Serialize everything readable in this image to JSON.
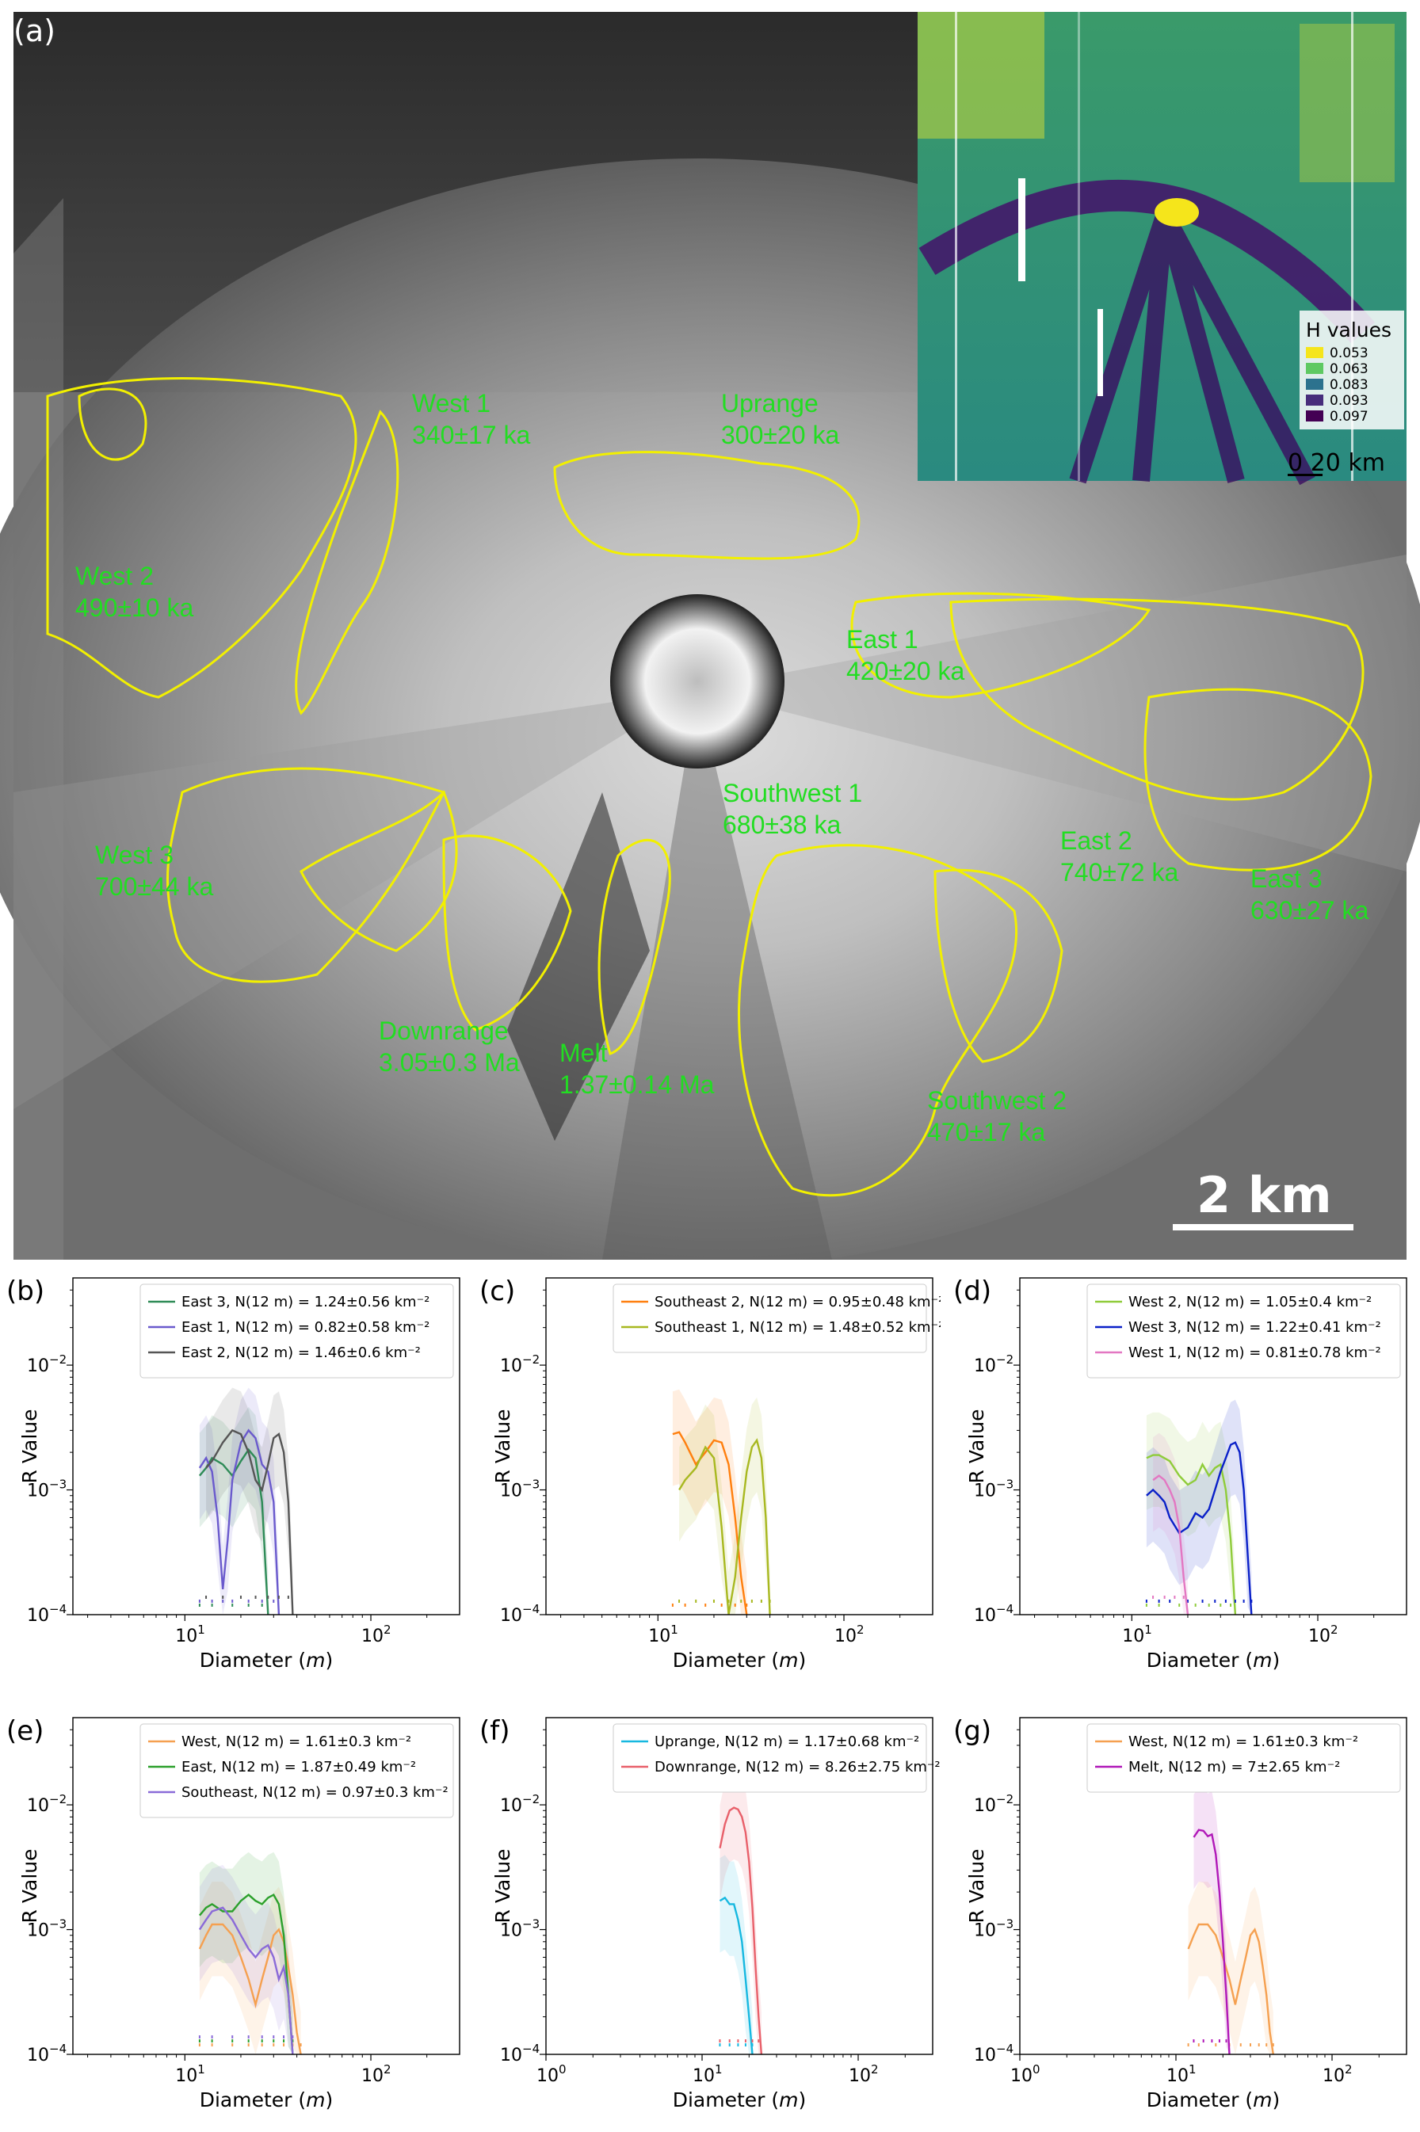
{
  "map": {
    "panel_label": "(a)",
    "scale_bar": "2 km",
    "inset": {
      "legend_title": "H values",
      "legend": [
        {
          "label": "0.053",
          "color": "#f5e51b"
        },
        {
          "label": "0.063",
          "color": "#5ec962"
        },
        {
          "label": "0.083",
          "color": "#2c728e"
        },
        {
          "label": "0.093",
          "color": "#472d7b"
        },
        {
          "label": "0.097",
          "color": "#440154"
        }
      ],
      "scale": "0  20 km"
    },
    "regions": [
      {
        "name": "West 1",
        "age": "340±17 ka"
      },
      {
        "name": "Uprange",
        "age": "300±20 ka"
      },
      {
        "name": "West 2",
        "age": "490±10 ka"
      },
      {
        "name": "East 1",
        "age": "420±20 ka"
      },
      {
        "name": "Southwest 1",
        "age": "680±38 ka"
      },
      {
        "name": "West 3",
        "age": "700±44 ka"
      },
      {
        "name": "East 2",
        "age": "740±72 ka"
      },
      {
        "name": "East 3",
        "age": "630±27 ka"
      },
      {
        "name": "Downrange",
        "age": "3.05±0.3 Ma"
      },
      {
        "name": "Melt",
        "age": "1.37±0.14 Ma"
      },
      {
        "name": "Southwest 2",
        "age": "470±17 ka"
      }
    ]
  },
  "chart_data": [
    {
      "panel": "(b)",
      "type": "line",
      "xlabel": "Diameter (m)",
      "ylabel": "R Value",
      "xscale": "log",
      "yscale": "log",
      "xlim": [
        2.5,
        300
      ],
      "ylim": [
        0.0001,
        0.05
      ],
      "series": [
        {
          "name": "East 3, N(12 m) = 1.24±0.56 km⁻²",
          "color": "#2e8b57",
          "x": [
            12,
            13,
            14,
            16,
            18,
            20,
            22,
            24,
            26,
            28
          ],
          "y": [
            0.0013,
            0.0015,
            0.0018,
            0.0016,
            0.0013,
            0.0017,
            0.0021,
            0.0018,
            0.0008,
            0.0001
          ]
        },
        {
          "name": "East 1, N(12 m) = 0.82±0.58 km⁻²",
          "color": "#6a5acd",
          "x": [
            12,
            13,
            14,
            15,
            16,
            17,
            18,
            20,
            22,
            24,
            26,
            28,
            30,
            32
          ],
          "y": [
            0.0015,
            0.0018,
            0.0014,
            0.0006,
            0.00016,
            0.0004,
            0.0012,
            0.0024,
            0.003,
            0.0026,
            0.0016,
            0.0014,
            0.0008,
            0.0001
          ]
        },
        {
          "name": "East 2, N(12 m) = 1.46±0.6 km⁻²",
          "color": "#555555",
          "x": [
            13,
            14,
            16,
            18,
            20,
            22,
            24,
            26,
            28,
            30,
            32,
            34,
            36,
            38
          ],
          "y": [
            0.0015,
            0.0017,
            0.0024,
            0.003,
            0.0028,
            0.002,
            0.0012,
            0.001,
            0.0016,
            0.0026,
            0.0028,
            0.002,
            0.0008,
            0.0001
          ]
        }
      ]
    },
    {
      "panel": "(c)",
      "type": "line",
      "xlabel": "Diameter (m)",
      "ylabel": "R Value",
      "xscale": "log",
      "yscale": "log",
      "xlim": [
        2.5,
        300
      ],
      "ylim": [
        0.0001,
        0.05
      ],
      "series": [
        {
          "name": "Southeast 2, N(12 m) = 0.95±0.48 km⁻²",
          "color": "#ff7f0e",
          "x": [
            12,
            13,
            14,
            16,
            18,
            20,
            22,
            24,
            26,
            28,
            30
          ],
          "y": [
            0.0028,
            0.0029,
            0.0024,
            0.0016,
            0.002,
            0.0025,
            0.0024,
            0.0016,
            0.0006,
            0.0002,
            0.0001
          ]
        },
        {
          "name": "Southeast 1, N(12 m) = 1.48±0.52 km⁻²",
          "color": "#a8b820",
          "x": [
            13,
            14,
            16,
            18,
            20,
            22,
            24,
            26,
            28,
            30,
            32,
            34,
            36,
            38,
            40
          ],
          "y": [
            0.001,
            0.0012,
            0.0015,
            0.0022,
            0.0018,
            0.0005,
            0.0001,
            0.0002,
            0.0006,
            0.0014,
            0.0022,
            0.0025,
            0.0018,
            0.0006,
            0.0001
          ]
        }
      ]
    },
    {
      "panel": "(d)",
      "type": "line",
      "xlabel": "Diameter (m)",
      "ylabel": "R Value",
      "xscale": "log",
      "yscale": "log",
      "xlim": [
        2.5,
        300
      ],
      "ylim": [
        0.0001,
        0.05
      ],
      "series": [
        {
          "name": "West 2, N(12 m) = 1.05±0.4 km⁻²",
          "color": "#8fcc3a",
          "x": [
            12,
            13,
            14,
            16,
            18,
            20,
            22,
            24,
            26,
            28,
            30,
            32,
            34,
            36
          ],
          "y": [
            0.0018,
            0.0019,
            0.0019,
            0.0017,
            0.0013,
            0.0011,
            0.0012,
            0.0016,
            0.0013,
            0.0015,
            0.0016,
            0.001,
            0.0004,
            0.0001
          ]
        },
        {
          "name": "West 3, N(12 m) = 1.22±0.41 km⁻²",
          "color": "#0a20c8",
          "x": [
            12,
            13,
            14,
            15,
            16,
            18,
            20,
            22,
            24,
            26,
            28,
            30,
            32,
            34,
            36,
            38,
            40,
            42,
            44
          ],
          "y": [
            0.0009,
            0.001,
            0.0009,
            0.0008,
            0.0006,
            0.00045,
            0.0005,
            0.00065,
            0.0006,
            0.0007,
            0.001,
            0.0014,
            0.0018,
            0.0023,
            0.0024,
            0.002,
            0.001,
            0.0003,
            0.0001
          ]
        },
        {
          "name": "West 1, N(12 m) = 0.81±0.78 km⁻²",
          "color": "#e377c2",
          "x": [
            13,
            14,
            15,
            16,
            17,
            18,
            19,
            20
          ],
          "y": [
            0.0012,
            0.0013,
            0.0012,
            0.001,
            0.0008,
            0.0005,
            0.0002,
            0.0001
          ]
        }
      ]
    },
    {
      "panel": "(e)",
      "type": "line",
      "xlabel": "Diameter (m)",
      "ylabel": "R Value",
      "xscale": "log",
      "yscale": "log",
      "xlim": [
        2.5,
        300
      ],
      "ylim": [
        0.0001,
        0.05
      ],
      "series": [
        {
          "name": "West, N(12 m) = 1.61±0.3 km⁻²",
          "color": "#f5a050",
          "x": [
            12,
            13,
            14,
            16,
            18,
            20,
            22,
            24,
            26,
            28,
            30,
            32,
            34,
            36,
            38,
            40,
            42
          ],
          "y": [
            0.0007,
            0.0009,
            0.0011,
            0.0011,
            0.0009,
            0.0006,
            0.0004,
            0.00025,
            0.0004,
            0.0006,
            0.0009,
            0.001,
            0.0008,
            0.0005,
            0.0003,
            0.00015,
            0.0001
          ]
        },
        {
          "name": "East, N(12 m) = 1.87±0.49 km⁻²",
          "color": "#2ca02c",
          "x": [
            12,
            13,
            14,
            16,
            18,
            20,
            22,
            24,
            26,
            28,
            30,
            32,
            34,
            36,
            38
          ],
          "y": [
            0.0013,
            0.0015,
            0.0016,
            0.0014,
            0.0014,
            0.0017,
            0.0019,
            0.0017,
            0.0016,
            0.0018,
            0.0019,
            0.0016,
            0.0009,
            0.0003,
            0.0001
          ]
        },
        {
          "name": "Southeast, N(12 m) = 0.97±0.3 km⁻²",
          "color": "#8a6ad8",
          "x": [
            12,
            13,
            14,
            16,
            18,
            20,
            22,
            24,
            26,
            28,
            30,
            32,
            34,
            36,
            38
          ],
          "y": [
            0.001,
            0.0012,
            0.0014,
            0.0015,
            0.0012,
            0.0009,
            0.0007,
            0.0006,
            0.0007,
            0.00075,
            0.0006,
            0.0004,
            0.0005,
            0.0003,
            0.0001
          ]
        }
      ]
    },
    {
      "panel": "(f)",
      "type": "line",
      "xlabel": "Diameter (m)",
      "ylabel": "R Value",
      "xscale": "log",
      "yscale": "log",
      "xlim": [
        1,
        300
      ],
      "ylim": [
        0.0001,
        0.05
      ],
      "series": [
        {
          "name": "Uprange, N(12 m) = 1.17±0.68 km⁻²",
          "color": "#17b8e0",
          "x": [
            13,
            14,
            15,
            16,
            17,
            18,
            19,
            20,
            21
          ],
          "y": [
            0.0017,
            0.0018,
            0.0016,
            0.0016,
            0.0012,
            0.0008,
            0.0004,
            0.0002,
            0.0001
          ]
        },
        {
          "name": "Downrange, N(12 m) = 8.26±2.75 km⁻²",
          "color": "#e8606a",
          "x": [
            13,
            14,
            15,
            16,
            17,
            18,
            19,
            20,
            21,
            22,
            23,
            24
          ],
          "y": [
            0.0045,
            0.007,
            0.009,
            0.0095,
            0.0092,
            0.008,
            0.006,
            0.0035,
            0.0015,
            0.0005,
            0.0002,
            0.0001
          ]
        }
      ]
    },
    {
      "panel": "(g)",
      "type": "line",
      "xlabel": "Diameter (m)",
      "ylabel": "R Value",
      "xscale": "log",
      "yscale": "log",
      "xlim": [
        1,
        300
      ],
      "ylim": [
        0.0001,
        0.05
      ],
      "series": [
        {
          "name": "West, N(12 m) = 1.61±0.3 km⁻²",
          "color": "#f5a050",
          "x": [
            12,
            13,
            14,
            16,
            18,
            20,
            22,
            24,
            26,
            28,
            30,
            32,
            34,
            36,
            38,
            40,
            42
          ],
          "y": [
            0.0007,
            0.0009,
            0.0011,
            0.0011,
            0.0009,
            0.0006,
            0.0004,
            0.00025,
            0.0004,
            0.0006,
            0.0009,
            0.001,
            0.0008,
            0.0005,
            0.0003,
            0.00015,
            0.0001
          ]
        },
        {
          "name": "Melt, N(12 m) = 7±2.65 km⁻²",
          "color": "#b018b8",
          "x": [
            13,
            14,
            15,
            16,
            17,
            18,
            19,
            20,
            21,
            22
          ],
          "y": [
            0.0055,
            0.0063,
            0.0062,
            0.0056,
            0.0058,
            0.004,
            0.002,
            0.0008,
            0.0003,
            0.0001
          ]
        }
      ]
    }
  ]
}
